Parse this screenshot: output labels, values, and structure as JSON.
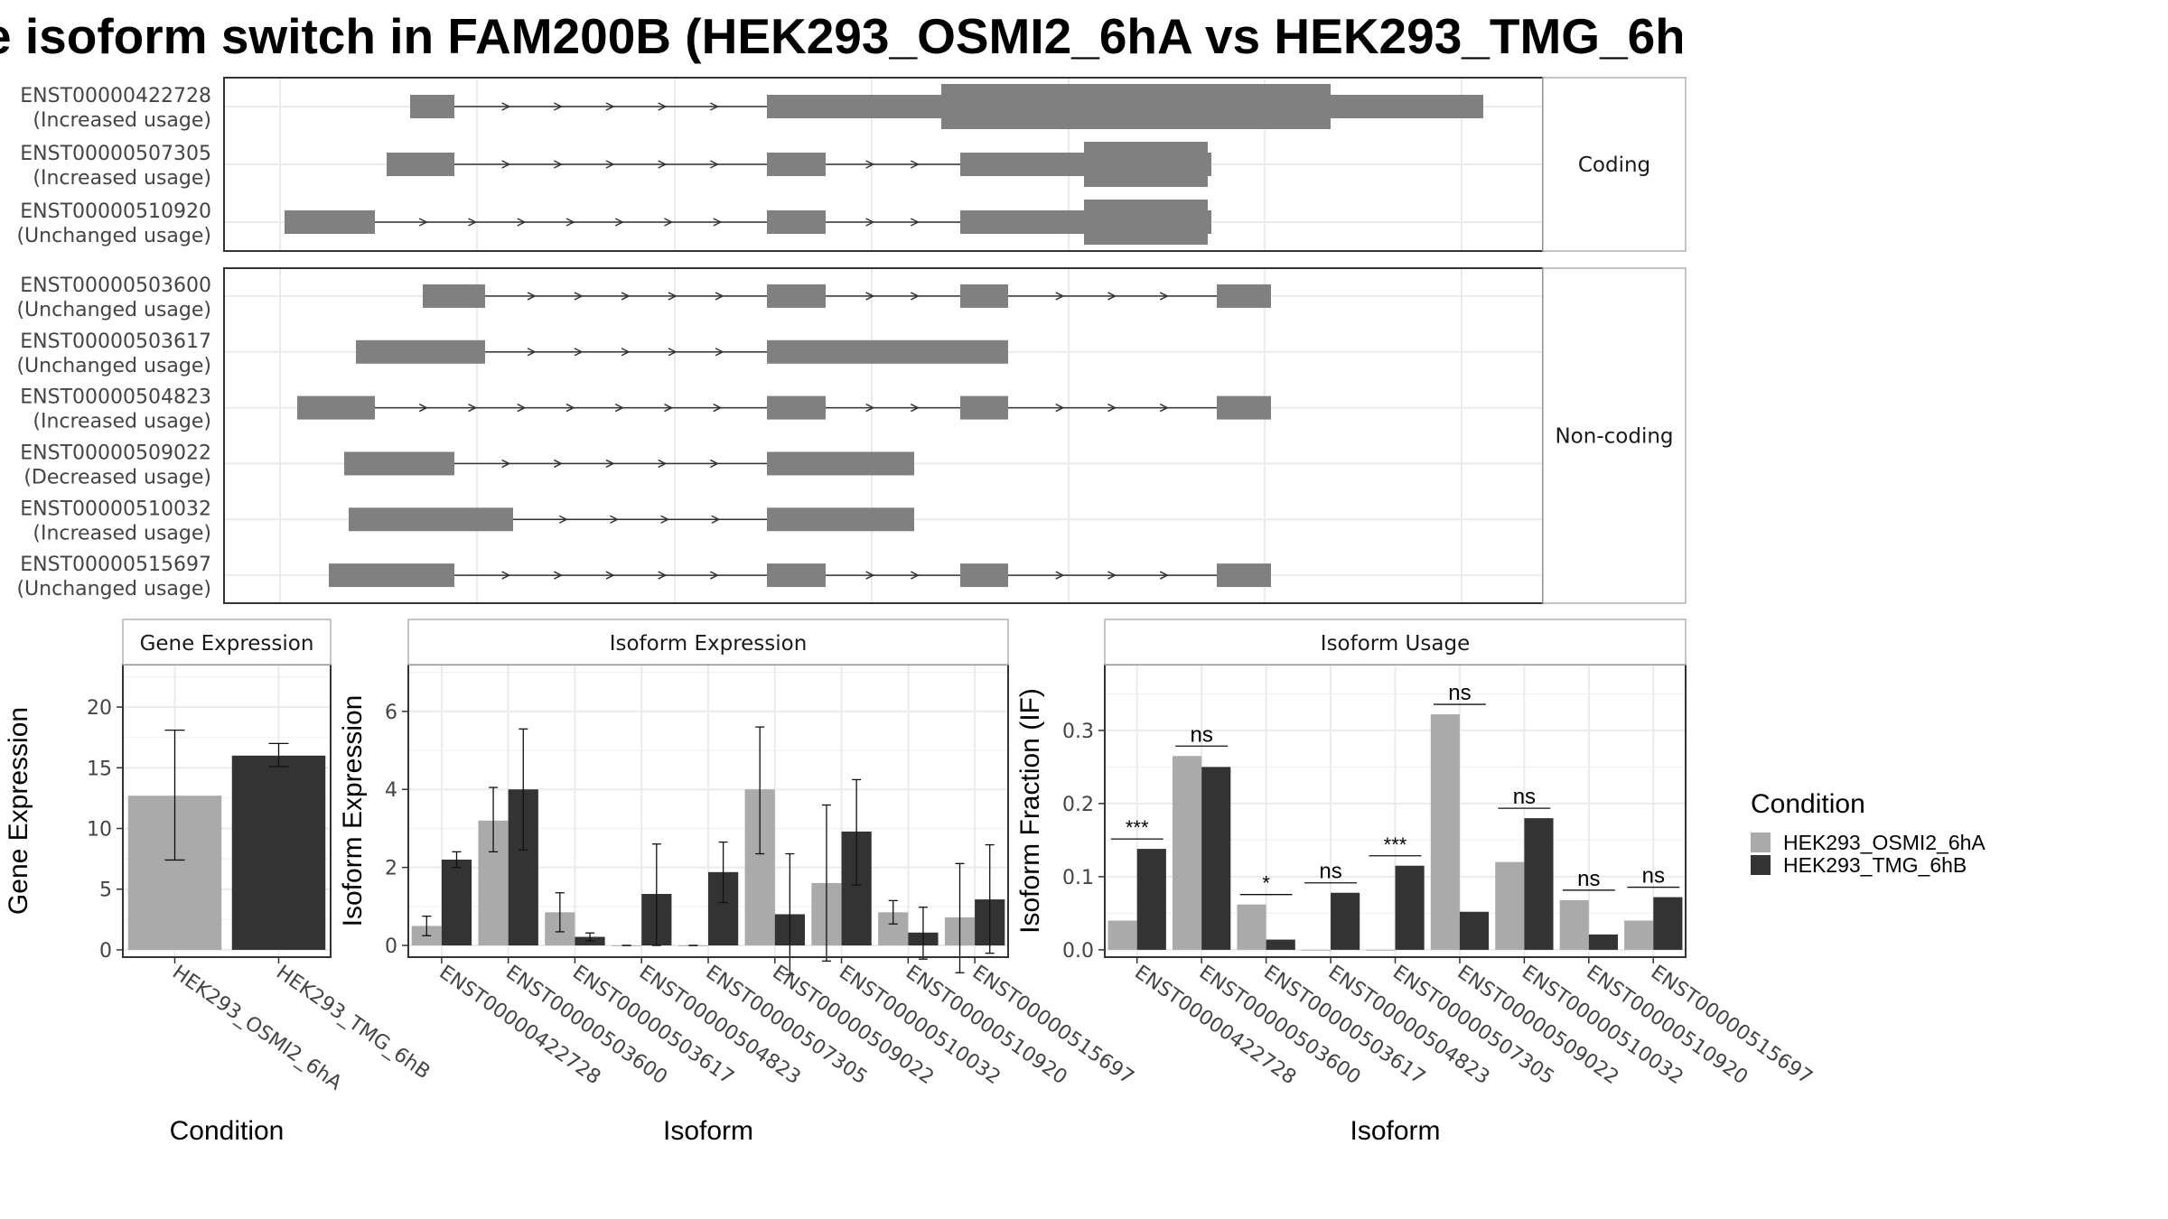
{
  "title": "e isoform switch in FAM200B (HEK293_OSMI2_6hA vs HEK293_TMG_6h",
  "colors": {
    "cond_a": "#aaaaaa",
    "cond_b": "#333333",
    "exon": "#808080",
    "grid": "#ebebeb",
    "panel_border": "#333333"
  },
  "transcript_panels": [
    {
      "label": "Coding",
      "transcripts": [
        {
          "id": "ENST00000422728",
          "usage": "(Increased usage)"
        },
        {
          "id": "ENST00000507305",
          "usage": "(Increased usage)"
        },
        {
          "id": "ENST00000510920",
          "usage": "(Unchanged usage)"
        }
      ]
    },
    {
      "label": "Non-coding",
      "transcripts": [
        {
          "id": "ENST00000503600",
          "usage": "(Unchanged usage)"
        },
        {
          "id": "ENST00000503617",
          "usage": "(Unchanged usage)"
        },
        {
          "id": "ENST00000504823",
          "usage": "(Increased usage)"
        },
        {
          "id": "ENST00000509022",
          "usage": "(Decreased usage)"
        },
        {
          "id": "ENST00000510032",
          "usage": "(Increased usage)"
        },
        {
          "id": "ENST00000515697",
          "usage": "(Unchanged usage)"
        }
      ]
    }
  ],
  "chart_data": [
    {
      "type": "bar",
      "title": "Gene Expression",
      "xlabel": "Condition",
      "ylabel": "Gene Expression",
      "categories": [
        "HEK293_OSMI2_6hA",
        "HEK293_TMG_6hB"
      ],
      "values": [
        12.7,
        16.0
      ],
      "error": [
        [
          7.4,
          18.1
        ],
        [
          15.1,
          17.0
        ]
      ],
      "ylim": [
        -0.6,
        23.5
      ],
      "yticks": [
        0,
        5,
        10,
        15,
        20
      ],
      "grid": true
    },
    {
      "type": "bar",
      "title": "Isoform Expression",
      "xlabel": "Isoform",
      "ylabel": "Isoform Expression",
      "categories": [
        "ENST00000422728",
        "ENST00000503600",
        "ENST00000503617",
        "ENST00000504823",
        "ENST00000507305",
        "ENST00000509022",
        "ENST00000510032",
        "ENST00000510920",
        "ENST00000515697"
      ],
      "series": [
        {
          "name": "HEK293_OSMI2_6hA",
          "values": [
            0.5,
            3.2,
            0.85,
            0.0,
            0.0,
            4.0,
            1.6,
            0.85,
            0.72
          ],
          "error": [
            [
              0.25,
              0.75
            ],
            [
              2.4,
              4.05
            ],
            [
              0.35,
              1.35
            ],
            [
              0.0,
              0.0
            ],
            [
              0.0,
              0.0
            ],
            [
              2.35,
              5.6
            ],
            [
              -0.4,
              3.6
            ],
            [
              0.55,
              1.15
            ],
            [
              -0.7,
              2.1
            ]
          ]
        },
        {
          "name": "HEK293_TMG_6hB",
          "values": [
            2.2,
            4.0,
            0.22,
            1.32,
            1.88,
            0.8,
            2.92,
            0.33,
            1.18
          ],
          "error": [
            [
              2.0,
              2.4
            ],
            [
              2.45,
              5.55
            ],
            [
              0.12,
              0.32
            ],
            [
              0.0,
              2.6
            ],
            [
              1.1,
              2.65
            ],
            [
              -0.75,
              2.35
            ],
            [
              1.55,
              4.25
            ],
            [
              -0.35,
              0.98
            ],
            [
              -0.2,
              2.58
            ]
          ]
        }
      ],
      "ylim": [
        -0.3,
        7.2
      ],
      "yticks": [
        0,
        2,
        4,
        6
      ],
      "grid": true
    },
    {
      "type": "bar",
      "title": "Isoform Usage",
      "xlabel": "Isoform",
      "ylabel": "Isoform Fraction (IF)",
      "categories": [
        "ENST00000422728",
        "ENST00000503600",
        "ENST00000503617",
        "ENST00000504823",
        "ENST00000507305",
        "ENST00000509022",
        "ENST00000510032",
        "ENST00000510920",
        "ENST00000515697"
      ],
      "series": [
        {
          "name": "HEK293_OSMI2_6hA",
          "values": [
            0.04,
            0.265,
            0.062,
            0.0,
            0.0,
            0.322,
            0.12,
            0.068,
            0.04
          ]
        },
        {
          "name": "HEK293_TMG_6hB",
          "values": [
            0.138,
            0.25,
            0.014,
            0.078,
            0.115,
            0.052,
            0.18,
            0.021,
            0.072
          ]
        }
      ],
      "significance": [
        "***",
        "ns",
        "*",
        "ns",
        "***",
        "ns",
        "ns",
        "ns",
        "ns"
      ],
      "ylim": [
        -0.01,
        0.39
      ],
      "yticks": [
        0.0,
        0.1,
        0.2,
        0.3
      ],
      "ytick_labels": [
        "0.0",
        "0.1",
        "0.2",
        "0.3"
      ],
      "grid": true
    }
  ],
  "legend": {
    "title": "Condition",
    "placement": "right",
    "entries": [
      "HEK293_OSMI2_6hA",
      "HEK293_TMG_6hB"
    ]
  }
}
